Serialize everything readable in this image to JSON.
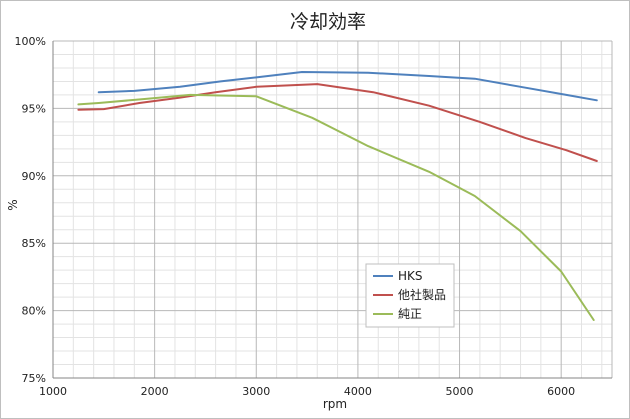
{
  "chart_data": {
    "type": "line",
    "title": "冷却効率",
    "xlabel": "rpm",
    "ylabel": "%",
    "xlim": [
      1000,
      6500
    ],
    "ylim": [
      75,
      100
    ],
    "x_ticks": [
      1000,
      2000,
      3000,
      4000,
      5000,
      6000
    ],
    "y_ticks": [
      75,
      80,
      85,
      90,
      95,
      100
    ],
    "y_tick_labels": [
      "75%",
      "80%",
      "85%",
      "90%",
      "95%",
      "100%"
    ],
    "x_minor_step": 200,
    "y_minor_step": 1,
    "grid": true,
    "legend_position": "inside-lower-right",
    "series": [
      {
        "name": "HKS",
        "color": "#4f81bd",
        "points": [
          [
            1450,
            96.2
          ],
          [
            1800,
            96.3
          ],
          [
            2250,
            96.6
          ],
          [
            2650,
            97.0
          ],
          [
            3000,
            97.3
          ],
          [
            3450,
            97.7
          ],
          [
            4100,
            97.65
          ],
          [
            4700,
            97.4
          ],
          [
            5150,
            97.2
          ],
          [
            5600,
            96.6
          ],
          [
            6050,
            96.0
          ],
          [
            6350,
            95.6
          ]
        ]
      },
      {
        "name": "他社製品",
        "color": "#c0504d",
        "points": [
          [
            1250,
            94.9
          ],
          [
            1500,
            94.95
          ],
          [
            1850,
            95.4
          ],
          [
            2250,
            95.8
          ],
          [
            2600,
            96.2
          ],
          [
            3000,
            96.6
          ],
          [
            3600,
            96.8
          ],
          [
            4150,
            96.2
          ],
          [
            4700,
            95.2
          ],
          [
            5200,
            94.0
          ],
          [
            5650,
            92.8
          ],
          [
            6050,
            91.9
          ],
          [
            6350,
            91.1
          ]
        ]
      },
      {
        "name": "純正",
        "color": "#9bbb59",
        "points": [
          [
            1250,
            95.3
          ],
          [
            1450,
            95.4
          ],
          [
            1900,
            95.7
          ],
          [
            2350,
            96.0
          ],
          [
            3000,
            95.9
          ],
          [
            3550,
            94.3
          ],
          [
            4100,
            92.2
          ],
          [
            4700,
            90.3
          ],
          [
            5150,
            88.5
          ],
          [
            5600,
            85.9
          ],
          [
            6000,
            82.9
          ],
          [
            6320,
            79.3
          ]
        ]
      }
    ]
  }
}
